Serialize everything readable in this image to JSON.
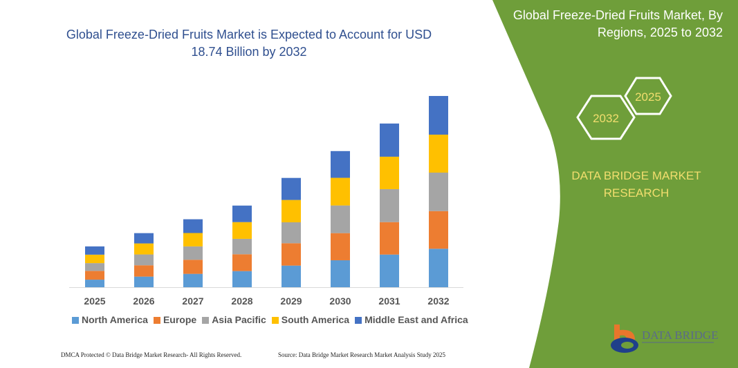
{
  "chart_data": {
    "type": "bar",
    "stacked": true,
    "title": "Global Freeze-Dried Fruits Market is Expected to Account for USD 18.74 Billion by 2032",
    "categories": [
      "2025",
      "2026",
      "2027",
      "2028",
      "2029",
      "2030",
      "2031",
      "2032"
    ],
    "series": [
      {
        "name": "North America",
        "color": "#5b9bd5",
        "values": [
          0.74,
          1.04,
          1.31,
          1.58,
          2.12,
          2.64,
          3.2,
          3.77
        ]
      },
      {
        "name": "Europe",
        "color": "#ed7d31",
        "values": [
          0.86,
          1.11,
          1.38,
          1.65,
          2.19,
          2.66,
          3.18,
          3.69
        ]
      },
      {
        "name": "Asia Pacific",
        "color": "#a5a5a5",
        "values": [
          0.76,
          1.06,
          1.31,
          1.51,
          2.05,
          2.71,
          3.23,
          3.77
        ]
      },
      {
        "name": "South America",
        "color": "#ffc000",
        "values": [
          0.83,
          1.08,
          1.31,
          1.64,
          2.19,
          2.71,
          3.18,
          3.72
        ]
      },
      {
        "name": "Middle East and Africa",
        "color": "#4472c4",
        "values": [
          0.81,
          1.01,
          1.35,
          1.62,
          2.16,
          2.62,
          3.25,
          3.79
        ]
      }
    ],
    "xlabel": "",
    "ylabel": "",
    "ylim": [
      0,
      18.74
    ],
    "grid": false,
    "legend_position": "bottom"
  },
  "side": {
    "title": "Global Freeze-Dried Fruits Market, By Regions, 2025 to 2032",
    "hex_start": "2025",
    "hex_end": "2032",
    "brand": "DATA BRIDGE MARKET RESEARCH",
    "logo_text": "DATA BRIDGE",
    "panel_color": "#6f9e3a"
  },
  "footer": {
    "left": "DMCA Protected © Data Bridge Market Research-  All Rights Reserved.",
    "right": "Source: Data Bridge Market Research  Market Analysis Study 2025"
  }
}
